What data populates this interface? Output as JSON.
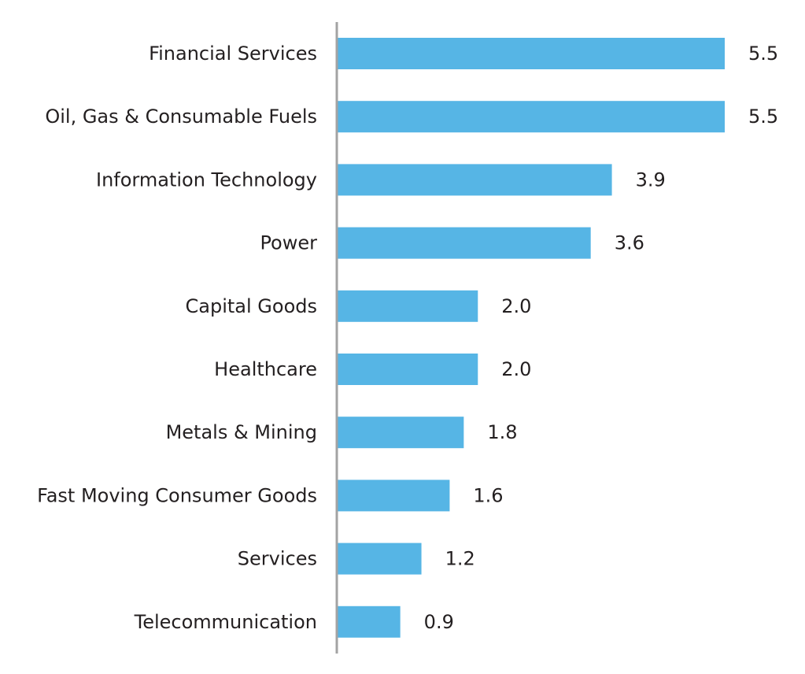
{
  "colors": {
    "bar": "#56b5e5",
    "axis": "#a3a3a3",
    "text": "#231f20",
    "background": "#ffffff"
  },
  "chart_data": {
    "type": "bar",
    "orientation": "horizontal",
    "categories": [
      "Financial Services",
      "Oil, Gas & Consumable Fuels",
      "Information Technology",
      "Power",
      "Capital Goods",
      "Healthcare",
      "Metals & Mining",
      "Fast Moving Consumer Goods",
      "Services",
      "Telecommunication"
    ],
    "values": [
      5.5,
      5.5,
      3.9,
      3.6,
      2.0,
      2.0,
      1.8,
      1.6,
      1.2,
      0.9
    ],
    "value_labels": [
      "5.5",
      "5.5",
      "3.9",
      "3.6",
      "2.0",
      "2.0",
      "1.8",
      "1.6",
      "1.2",
      "0.9"
    ],
    "title": "",
    "xlabel": "",
    "ylabel": "",
    "xlim": [
      0,
      5.5
    ],
    "grid": false,
    "legend": "none",
    "data_labels": true
  }
}
